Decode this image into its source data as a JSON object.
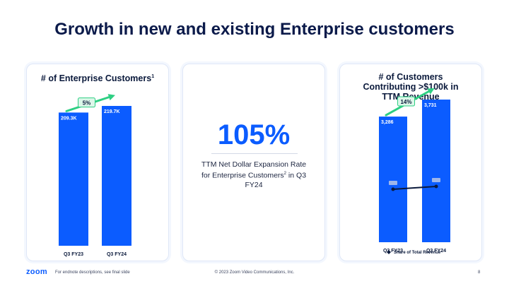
{
  "slide": {
    "title": "Growth in new and existing Enterprise customers",
    "footer_note": "For endnote descriptions, see final slide",
    "copyright": "© 2023 Zoom Video Communications, Inc.",
    "page_number": "8",
    "logo": "zoom"
  },
  "colors": {
    "bar": "#0b5cff",
    "growth": "#2ecf83",
    "line": "#0b1a3c",
    "title": "#0b1a4a"
  },
  "metric": {
    "value": "105%",
    "label_part1": "TTM Net Dollar Expansion Rate for Enterprise Customers",
    "label_sup": "2",
    "label_part2": " in Q3 FY24"
  },
  "chart_data": [
    {
      "type": "bar",
      "title": "# of Enterprise Customers",
      "title_sup": "1",
      "categories": [
        "Q3 FY23",
        "Q3 FY24"
      ],
      "values": [
        209.3,
        219.7
      ],
      "value_labels": [
        "209.3K",
        "219.7K"
      ],
      "unit": "K",
      "ylim": [
        0,
        219.7
      ],
      "growth_label": "5%",
      "grid": false
    },
    {
      "type": "bar",
      "title": "# of Customers Contributing >$100k in TTM Revenue",
      "categories": [
        "Q3 FY23",
        "Q3 FY24"
      ],
      "values": [
        3286,
        3731
      ],
      "value_labels": [
        "3,286",
        "3,731"
      ],
      "ylim": [
        0,
        3731
      ],
      "growth_label": "14%",
      "grid": false,
      "line_series": {
        "name": "Share of Total Revenue",
        "values": [
          0.5,
          0.5
        ],
        "data_labels_redacted": true
      },
      "legend": {
        "position": "bottom",
        "items": [
          "Share of Total Revenue"
        ]
      }
    }
  ]
}
